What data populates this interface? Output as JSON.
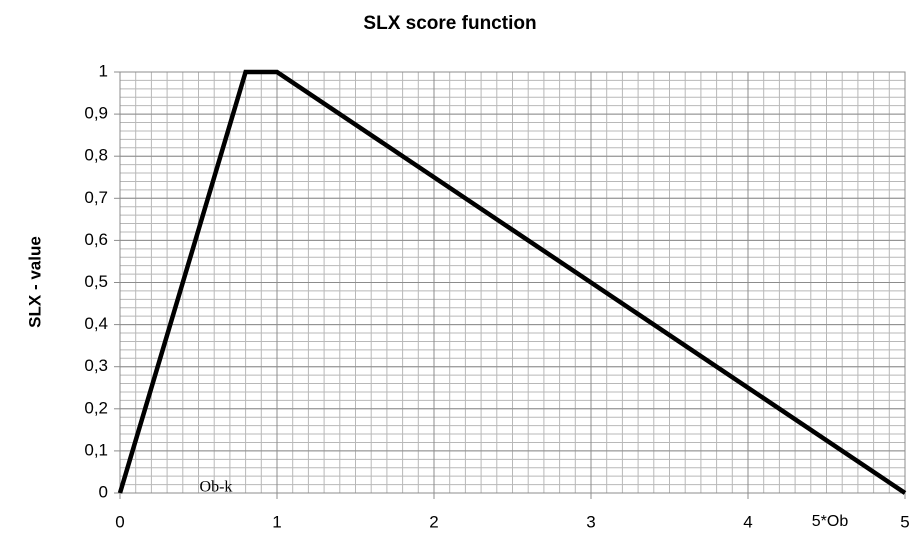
{
  "chart_data": {
    "type": "line",
    "title": "SLX  score function",
    "y_label": "SLX - value",
    "annotations": [
      "Ob-k",
      "5*Ob"
    ],
    "x": [
      0,
      0.8,
      1,
      5
    ],
    "series": [
      {
        "name": "SLX",
        "color": "#000000",
        "values": [
          0,
          1,
          1,
          0
        ]
      }
    ],
    "xlim": [
      0,
      5
    ],
    "xticks": [
      0,
      1,
      2,
      3,
      4,
      5
    ],
    "ylim": [
      0,
      1
    ],
    "yticks": [
      0,
      {
        "value": 0.1,
        "label": "0,1"
      },
      {
        "value": 0.2,
        "label": "0,2"
      },
      {
        "value": 0.3,
        "label": "0,3"
      },
      {
        "value": 0.4,
        "label": "0,4"
      },
      {
        "value": 0.5,
        "label": "0,5"
      },
      {
        "value": 0.6,
        "label": "0,6"
      },
      {
        "value": 0.7,
        "label": "0,7"
      },
      {
        "value": 0.8,
        "label": "0,8"
      },
      {
        "value": 0.9,
        "label": "0,9"
      },
      1
    ],
    "grid": true,
    "minor_grid": {
      "x": 0.1,
      "y": 0.02
    }
  }
}
